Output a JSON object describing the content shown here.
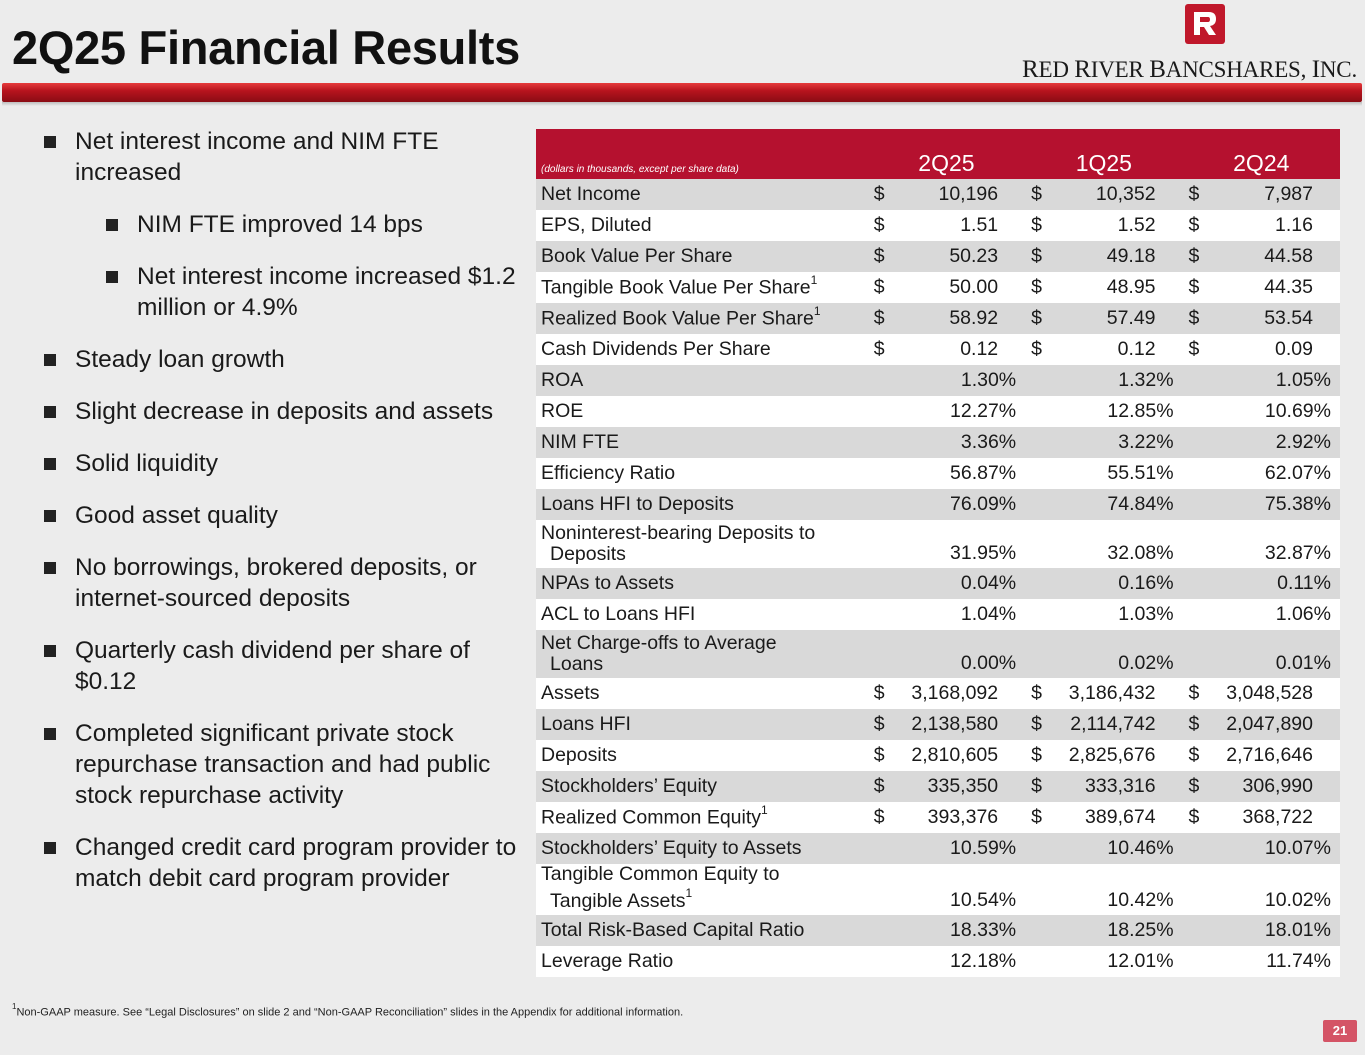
{
  "title": "2Q25 Financial Results",
  "logo": {
    "name_main": "RED RIVER BANCSHARES, INC.",
    "p1": "R",
    "p2": "ED ",
    "p3": "R",
    "p4": "IVER ",
    "p5": "B",
    "p6": "ANCSHARES, ",
    "p7": "I",
    "p8": "NC."
  },
  "colors": {
    "brand_red": "#b5112f",
    "shade": "#d9d9d9"
  },
  "bullets": [
    {
      "text": "Net interest income and NIM FTE increased",
      "level": 1
    },
    {
      "text": "NIM FTE improved 14 bps",
      "level": 2
    },
    {
      "text": "Net interest income increased $1.2 million or 4.9%",
      "level": 2
    },
    {
      "text": "Steady loan growth",
      "level": 1
    },
    {
      "text": "Slight decrease in deposits and assets",
      "level": 1
    },
    {
      "text": "Solid liquidity",
      "level": 1
    },
    {
      "text": "Good asset quality",
      "level": 1
    },
    {
      "text": "No borrowings, brokered deposits, or internet-sourced deposits",
      "level": 1
    },
    {
      "text": "Quarterly cash dividend per share of $0.12",
      "level": 1
    },
    {
      "text": "Completed significant private stock repurchase transaction and had public stock repurchase activity",
      "level": 1
    },
    {
      "text": "Changed credit card program provider to match debit card program provider",
      "level": 1
    }
  ],
  "table": {
    "units_note": "(dollars in thousands, except per share data)",
    "columns": [
      "2Q25",
      "1Q25",
      "2Q24"
    ],
    "rows": [
      {
        "label": "Net Income",
        "sup": "",
        "dollar": true,
        "values": [
          "10,196",
          "10,352",
          "7,987"
        ]
      },
      {
        "label": "EPS, Diluted",
        "sup": "",
        "dollar": true,
        "values": [
          "1.51",
          "1.52",
          "1.16"
        ]
      },
      {
        "label": "Book Value Per Share",
        "sup": "",
        "dollar": true,
        "values": [
          "50.23",
          "49.18",
          "44.58"
        ]
      },
      {
        "label": "Tangible Book Value Per Share",
        "sup": "1",
        "dollar": true,
        "values": [
          "50.00",
          "48.95",
          "44.35"
        ]
      },
      {
        "label": "Realized Book Value Per Share",
        "sup": "1",
        "dollar": true,
        "values": [
          "58.92",
          "57.49",
          "53.54"
        ]
      },
      {
        "label": "Cash Dividends Per Share",
        "sup": "",
        "dollar": true,
        "values": [
          "0.12",
          "0.12",
          "0.09"
        ]
      },
      {
        "label": "ROA",
        "sup": "",
        "dollar": false,
        "values": [
          "1.30%",
          "1.32%",
          "1.05%"
        ]
      },
      {
        "label": "ROE",
        "sup": "",
        "dollar": false,
        "values": [
          "12.27%",
          "12.85%",
          "10.69%"
        ]
      },
      {
        "label": "NIM FTE",
        "sup": "",
        "dollar": false,
        "values": [
          "3.36%",
          "3.22%",
          "2.92%"
        ]
      },
      {
        "label": "Efficiency Ratio",
        "sup": "",
        "dollar": false,
        "values": [
          "56.87%",
          "55.51%",
          "62.07%"
        ]
      },
      {
        "label": "Loans HFI to Deposits",
        "sup": "",
        "dollar": false,
        "values": [
          "76.09%",
          "74.84%",
          "75.38%"
        ]
      },
      {
        "label": "Noninterest-bearing Deposits to",
        "label2": "Deposits",
        "sup": "",
        "dollar": false,
        "values": [
          "31.95%",
          "32.08%",
          "32.87%"
        ]
      },
      {
        "label": "NPAs to Assets",
        "sup": "",
        "dollar": false,
        "values": [
          "0.04%",
          "0.16%",
          "0.11%"
        ]
      },
      {
        "label": "ACL to Loans HFI",
        "sup": "",
        "dollar": false,
        "values": [
          "1.04%",
          "1.03%",
          "1.06%"
        ]
      },
      {
        "label": "Net Charge-offs to Average",
        "label2": "Loans",
        "sup": "",
        "dollar": false,
        "values": [
          "0.00%",
          "0.02%",
          "0.01%"
        ]
      },
      {
        "label": "Assets",
        "sup": "",
        "dollar": true,
        "values": [
          "3,168,092",
          "3,186,432",
          "3,048,528"
        ]
      },
      {
        "label": "Loans HFI",
        "sup": "",
        "dollar": true,
        "values": [
          "2,138,580",
          "2,114,742",
          "2,047,890"
        ]
      },
      {
        "label": "Deposits",
        "sup": "",
        "dollar": true,
        "values": [
          "2,810,605",
          "2,825,676",
          "2,716,646"
        ]
      },
      {
        "label": "Stockholders’ Equity",
        "sup": "",
        "dollar": true,
        "values": [
          "335,350",
          "333,316",
          "306,990"
        ]
      },
      {
        "label": "Realized Common Equity",
        "sup": "1",
        "dollar": true,
        "values": [
          "393,376",
          "389,674",
          "368,722"
        ]
      },
      {
        "label": "Stockholders’ Equity to Assets",
        "sup": "",
        "dollar": false,
        "values": [
          "10.59%",
          "10.46%",
          "10.07%"
        ]
      },
      {
        "label": "Tangible Common Equity to",
        "label2": "Tangible Assets",
        "sup": "1",
        "dollar": false,
        "values": [
          "10.54%",
          "10.42%",
          "10.02%"
        ]
      },
      {
        "label": "Total Risk-Based Capital Ratio",
        "sup": "",
        "dollar": false,
        "values": [
          "18.33%",
          "18.25%",
          "18.01%"
        ]
      },
      {
        "label": "Leverage Ratio",
        "sup": "",
        "dollar": false,
        "values": [
          "12.18%",
          "12.01%",
          "11.74%"
        ]
      }
    ]
  },
  "footnote": {
    "sup": "1",
    "text": "Non-GAAP measure. See “Legal Disclosures” on slide 2 and “Non-GAAP Reconciliation” slides in the Appendix for additional information."
  },
  "page_number": "21"
}
